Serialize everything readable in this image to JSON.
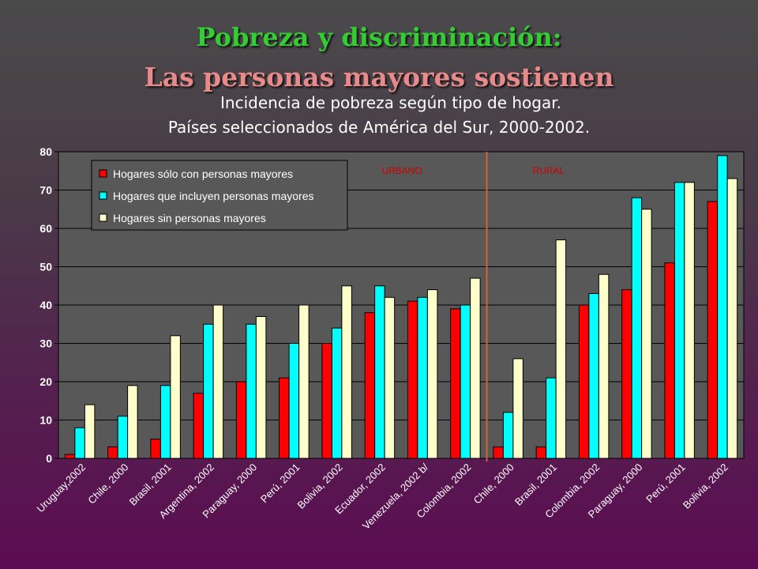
{
  "slide": {
    "title_line1": "Pobreza y discriminación:",
    "title_line2": "Las personas mayores sostienen"
  },
  "chart_data": {
    "type": "bar",
    "title": "Incidencia de pobreza según tipo de hogar.",
    "subtitle": "Países seleccionados de América del Sur, 2000-2002.",
    "xlabel": "",
    "ylabel": "",
    "ylim": [
      0,
      80
    ],
    "yticks": [
      0,
      10,
      20,
      30,
      40,
      50,
      60,
      70,
      80
    ],
    "grid": true,
    "legend_position": "top-left",
    "group_labels": [
      "URBANO",
      "RURAL"
    ],
    "group_split_after_index": 9,
    "categories": [
      "Uruguay,2002",
      "Chile, 2000",
      "Brasil, 2001",
      "Argentina, 2002",
      "Paraguay, 2000",
      "Perú, 2001",
      "Bolivia, 2002",
      "Ecuador, 2002",
      "Venezuela, 2002 b/",
      "Colombia, 2002",
      "Chile, 2000",
      "Brasil, 2001",
      "Colombia, 2002",
      "Paraguay, 2000",
      "Perú, 2001",
      "Bolivia, 2002"
    ],
    "series": [
      {
        "name": "Hogares sólo con personas mayores",
        "color": "#ff0000",
        "values": [
          1,
          3,
          5,
          17,
          20,
          21,
          30,
          38,
          41,
          39,
          3,
          3,
          40,
          44,
          51,
          67
        ]
      },
      {
        "name": "Hogares que incluyen personas mayores",
        "color": "#00ffff",
        "values": [
          8,
          11,
          19,
          35,
          35,
          30,
          34,
          45,
          42,
          40,
          12,
          21,
          43,
          68,
          72,
          79
        ]
      },
      {
        "name": "Hogares sin personas mayores",
        "color": "#ffffcc",
        "values": [
          14,
          19,
          32,
          40,
          37,
          40,
          45,
          42,
          44,
          47,
          26,
          57,
          48,
          65,
          72,
          73
        ]
      }
    ],
    "colors": {
      "plot_bg": "#585858",
      "grid": "#000000",
      "divider": "#cc6633",
      "group_label": "#cc0000"
    }
  }
}
